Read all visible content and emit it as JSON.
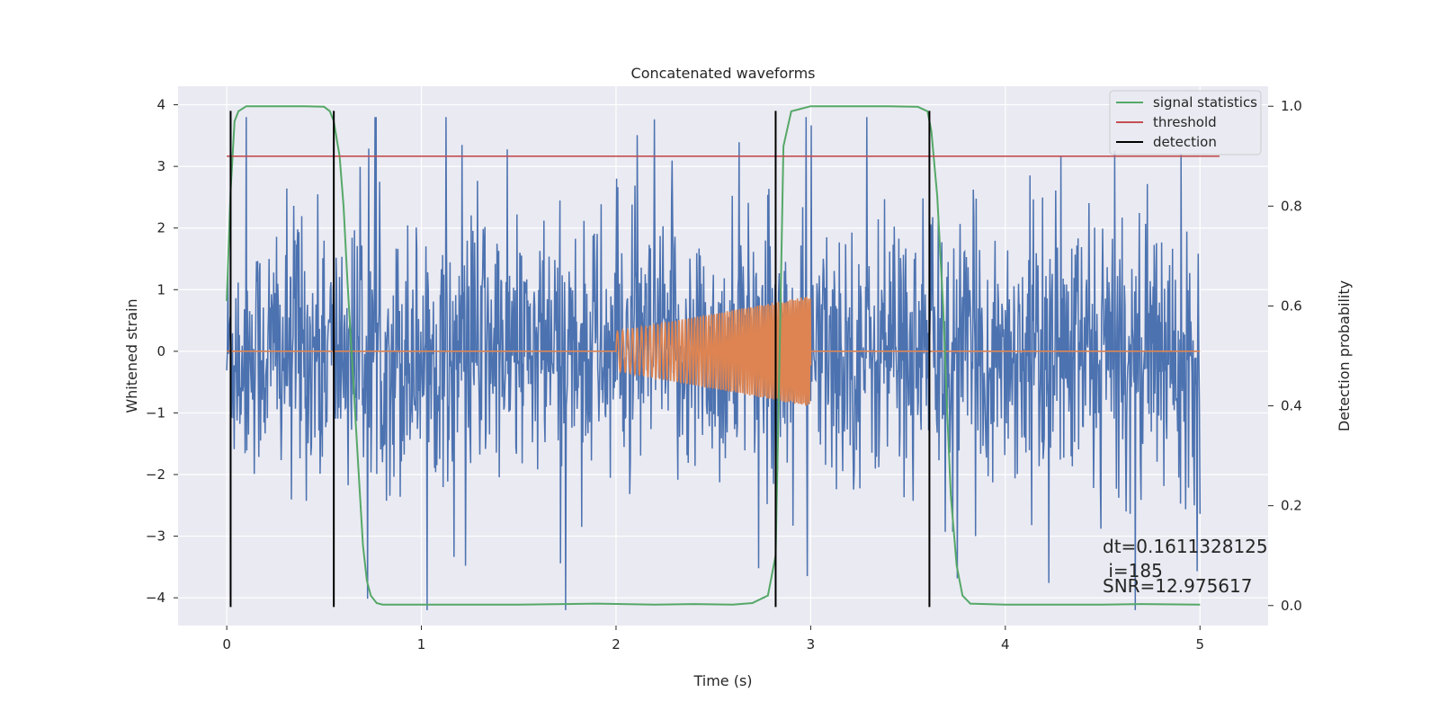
{
  "chart_data": {
    "type": "line",
    "title": "Concatenated waveforms",
    "xlabel": "Time (s)",
    "ylabel": "Whitened strain",
    "y2label": "Detection probability",
    "xlim": [
      -0.25,
      5.35
    ],
    "ylim": [
      -4.45,
      4.3
    ],
    "y2lim": [
      -0.04,
      1.04
    ],
    "xticks": [
      0,
      1,
      2,
      3,
      4,
      5
    ],
    "yticks": [
      4,
      3,
      2,
      1,
      0,
      -1,
      -2,
      -3,
      -4
    ],
    "y2ticks": [
      1.0,
      0.8,
      0.6,
      0.4,
      0.2,
      0.0
    ],
    "grid": true,
    "legend_position": "top-right",
    "legend": [
      "signal statistics",
      "threshold",
      "detection"
    ],
    "colors": {
      "noise": "#4c72b0",
      "signal": "#dd8452",
      "statistic": "#55a868",
      "threshold": "#c44e52",
      "detection": "#000000",
      "background": "#eaeaf2"
    },
    "series": [
      {
        "name": "signal statistics",
        "axis": "right",
        "x": [
          0.0,
          0.02,
          0.04,
          0.06,
          0.1,
          0.2,
          0.3,
          0.4,
          0.5,
          0.53,
          0.55,
          0.58,
          0.6,
          0.62,
          0.65,
          0.68,
          0.7,
          0.72,
          0.74,
          0.77,
          0.8,
          1.0,
          1.5,
          1.9,
          2.2,
          2.4,
          2.6,
          2.7,
          2.78,
          2.82,
          2.84,
          2.86,
          2.9,
          3.0,
          3.2,
          3.4,
          3.55,
          3.6,
          3.62,
          3.65,
          3.68,
          3.7,
          3.72,
          3.75,
          3.78,
          3.82,
          4.0,
          4.5,
          4.7,
          5.0
        ],
        "y": [
          0.61,
          0.83,
          0.97,
          0.99,
          1.0,
          1.0,
          1.0,
          1.0,
          0.999,
          0.99,
          0.97,
          0.9,
          0.8,
          0.65,
          0.45,
          0.25,
          0.12,
          0.05,
          0.02,
          0.005,
          0.002,
          0.002,
          0.002,
          0.004,
          0.002,
          0.003,
          0.002,
          0.005,
          0.02,
          0.1,
          0.5,
          0.92,
          0.99,
          1.0,
          1.0,
          1.0,
          0.999,
          0.99,
          0.95,
          0.82,
          0.6,
          0.4,
          0.22,
          0.08,
          0.02,
          0.004,
          0.002,
          0.002,
          0.003,
          0.002
        ]
      },
      {
        "name": "threshold",
        "axis": "right",
        "x": [
          0.0,
          5.1
        ],
        "y": [
          0.9,
          0.9
        ]
      },
      {
        "name": "detection",
        "axis": "left",
        "x": [
          0.02,
          0.55,
          2.82,
          3.61
        ],
        "y_range": [
          -4.15,
          3.9
        ]
      },
      {
        "axis": "left",
        "x_range": [
          0.0,
          5.0
        ],
        "y_range": [
          -4.2,
          3.8
        ]
      },
      {
        "axis": "left",
        "x_range": [
          2.0,
          3.0
        ],
        "y_range": [
          -0.9,
          0.9
        ]
      }
    ],
    "annotations": [
      "dt=0.1611328125",
      " i=185",
      "SNR=12.975617"
    ]
  }
}
